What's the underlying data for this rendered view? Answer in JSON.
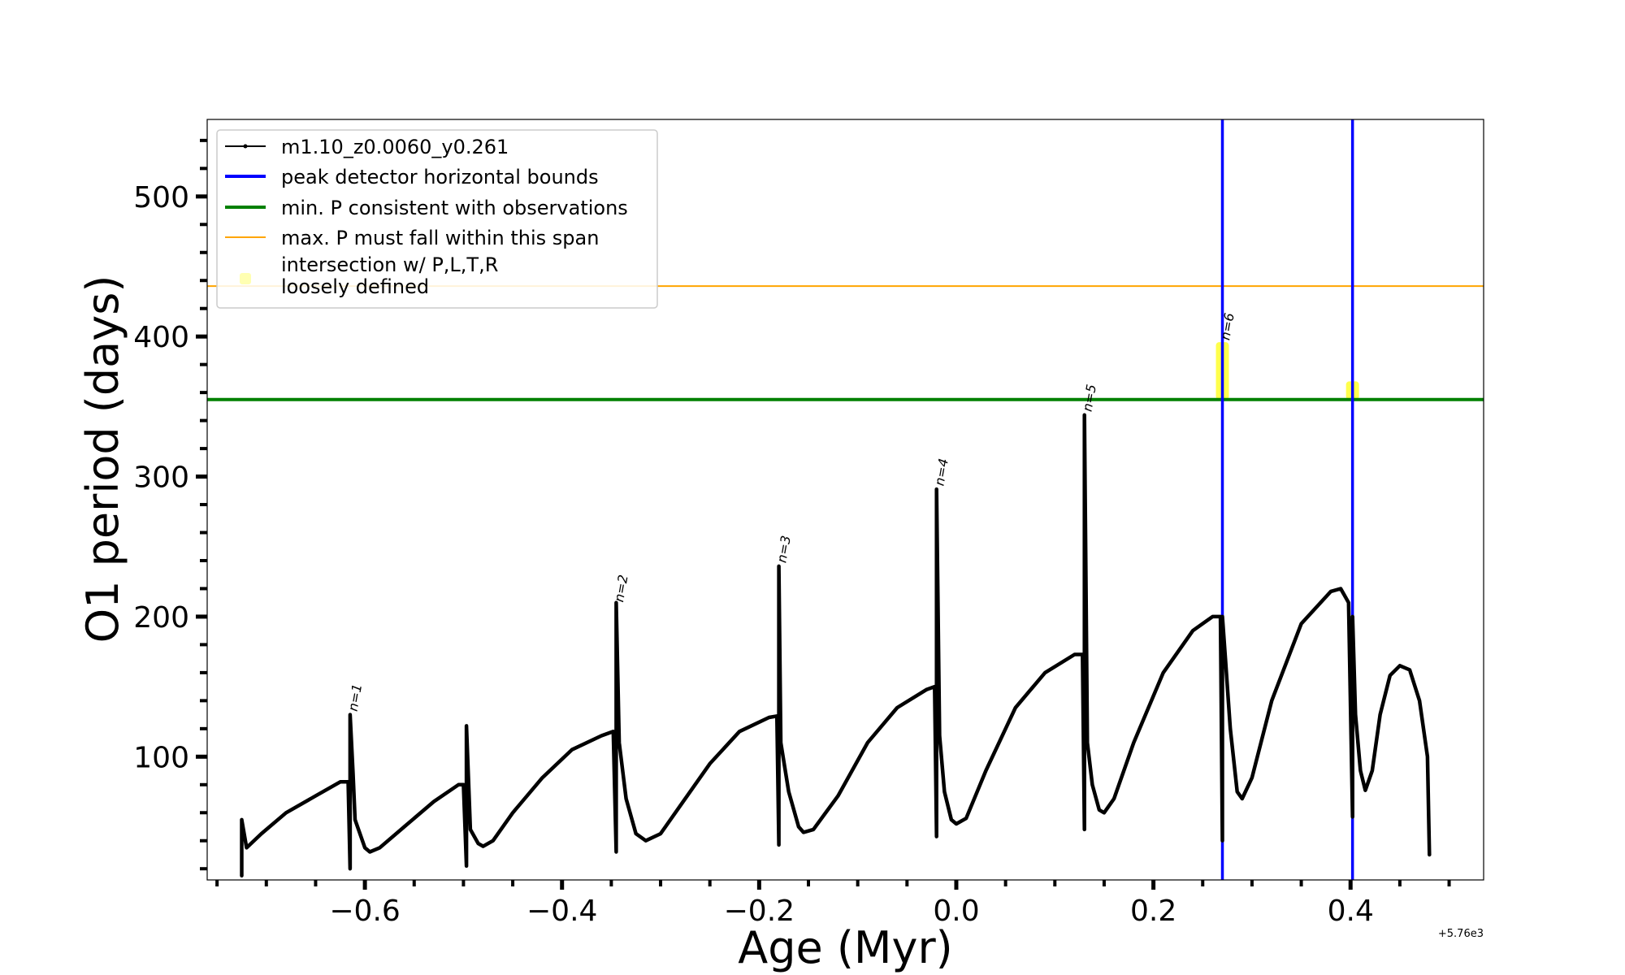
{
  "chart_data": {
    "type": "line",
    "xlabel": "Age (Myr)",
    "ylabel": "O1 period (days)",
    "x_offset_label": "+5.76e3",
    "xlim": [
      -0.76,
      0.535
    ],
    "ylim": [
      12,
      555
    ],
    "x_ticks": [
      -0.6,
      -0.4,
      -0.2,
      0.0,
      0.2,
      0.4
    ],
    "x_tick_labels": [
      "−0.6",
      "−0.4",
      "−0.2",
      "0.0",
      "0.2",
      "0.4"
    ],
    "x_minor_step": 0.05,
    "y_ticks": [
      100,
      200,
      300,
      400,
      500
    ],
    "y_tick_labels": [
      "100",
      "200",
      "300",
      "400",
      "500"
    ],
    "y_minor_step": 20,
    "grid": false,
    "legend_position": "top-left",
    "series": [
      {
        "name": "m1.10_z0.0060_y0.261",
        "color": "#000000",
        "points": [
          [
            -0.725,
            40
          ],
          [
            -0.725,
            15
          ],
          [
            -0.725,
            55
          ],
          [
            -0.72,
            35
          ],
          [
            -0.705,
            45
          ],
          [
            -0.68,
            60
          ],
          [
            -0.65,
            72
          ],
          [
            -0.625,
            82
          ],
          [
            -0.617,
            82
          ],
          [
            -0.615,
            20
          ],
          [
            -0.615,
            130
          ],
          [
            -0.612,
            88
          ],
          [
            -0.61,
            55
          ],
          [
            -0.6,
            35
          ],
          [
            -0.595,
            32
          ],
          [
            -0.585,
            35
          ],
          [
            -0.56,
            50
          ],
          [
            -0.53,
            68
          ],
          [
            -0.505,
            80
          ],
          [
            -0.5,
            80
          ],
          [
            -0.497,
            22
          ],
          [
            -0.497,
            122
          ],
          [
            -0.493,
            48
          ],
          [
            -0.485,
            38
          ],
          [
            -0.48,
            36
          ],
          [
            -0.47,
            40
          ],
          [
            -0.45,
            60
          ],
          [
            -0.42,
            85
          ],
          [
            -0.39,
            105
          ],
          [
            -0.36,
            115
          ],
          [
            -0.348,
            118
          ],
          [
            -0.345,
            32
          ],
          [
            -0.345,
            210
          ],
          [
            -0.342,
            110
          ],
          [
            -0.335,
            70
          ],
          [
            -0.325,
            45
          ],
          [
            -0.315,
            40
          ],
          [
            -0.3,
            45
          ],
          [
            -0.28,
            65
          ],
          [
            -0.25,
            95
          ],
          [
            -0.22,
            118
          ],
          [
            -0.19,
            128
          ],
          [
            -0.182,
            129
          ],
          [
            -0.18,
            37
          ],
          [
            -0.18,
            236
          ],
          [
            -0.178,
            110
          ],
          [
            -0.17,
            75
          ],
          [
            -0.16,
            50
          ],
          [
            -0.155,
            46
          ],
          [
            -0.145,
            48
          ],
          [
            -0.12,
            72
          ],
          [
            -0.09,
            110
          ],
          [
            -0.06,
            135
          ],
          [
            -0.03,
            148
          ],
          [
            -0.022,
            150
          ],
          [
            -0.02,
            43
          ],
          [
            -0.02,
            291
          ],
          [
            -0.017,
            115
          ],
          [
            -0.012,
            75
          ],
          [
            -0.005,
            55
          ],
          [
            0.0,
            52
          ],
          [
            0.01,
            56
          ],
          [
            0.03,
            90
          ],
          [
            0.06,
            135
          ],
          [
            0.09,
            160
          ],
          [
            0.12,
            173
          ],
          [
            0.128,
            173
          ],
          [
            0.13,
            48
          ],
          [
            0.13,
            344
          ],
          [
            0.133,
            110
          ],
          [
            0.138,
            80
          ],
          [
            0.145,
            62
          ],
          [
            0.15,
            60
          ],
          [
            0.16,
            70
          ],
          [
            0.18,
            110
          ],
          [
            0.21,
            160
          ],
          [
            0.24,
            190
          ],
          [
            0.26,
            200
          ],
          [
            0.268,
            200
          ],
          [
            0.27,
            40
          ],
          [
            0.27,
            200
          ],
          [
            0.273,
            170
          ],
          [
            0.278,
            120
          ],
          [
            0.285,
            75
          ],
          [
            0.29,
            70
          ],
          [
            0.3,
            85
          ],
          [
            0.32,
            140
          ],
          [
            0.35,
            195
          ],
          [
            0.38,
            218
          ],
          [
            0.39,
            220
          ],
          [
            0.398,
            210
          ],
          [
            0.402,
            57
          ],
          [
            0.402,
            200
          ],
          [
            0.405,
            130
          ],
          [
            0.41,
            90
          ],
          [
            0.415,
            76
          ],
          [
            0.422,
            90
          ],
          [
            0.43,
            130
          ],
          [
            0.44,
            158
          ],
          [
            0.45,
            165
          ],
          [
            0.46,
            162
          ],
          [
            0.47,
            140
          ],
          [
            0.478,
            100
          ],
          [
            0.48,
            30
          ]
        ]
      }
    ],
    "reference_lines": [
      {
        "name": "peak detector horizontal bounds",
        "orientation": "vertical",
        "values": [
          0.27,
          0.402
        ],
        "color": "#0000ff"
      },
      {
        "name": "min. P consistent with observations",
        "orientation": "horizontal",
        "value": 355,
        "color": "#008000"
      },
      {
        "name": "max. P must fall within this span",
        "orientation": "horizontal",
        "value": 436,
        "color": "#ffa500"
      }
    ],
    "highlight_regions": [
      {
        "name": "intersection w/ P,L,T,R\nloosely defined",
        "color": "#ffff00",
        "boxes": [
          {
            "x": 0.27,
            "y0": 355,
            "y1": 396
          },
          {
            "x": 0.402,
            "y0": 355,
            "y1": 368
          }
        ]
      }
    ],
    "peak_labels": [
      {
        "text": "n=1",
        "x": -0.608,
        "y": 132
      },
      {
        "text": "n=2",
        "x": -0.338,
        "y": 210
      },
      {
        "text": "n=3",
        "x": -0.173,
        "y": 238
      },
      {
        "text": "n=4",
        "x": -0.013,
        "y": 293
      },
      {
        "text": "n=5",
        "x": 0.137,
        "y": 346
      },
      {
        "text": "n=6",
        "x": 0.277,
        "y": 397
      }
    ]
  }
}
